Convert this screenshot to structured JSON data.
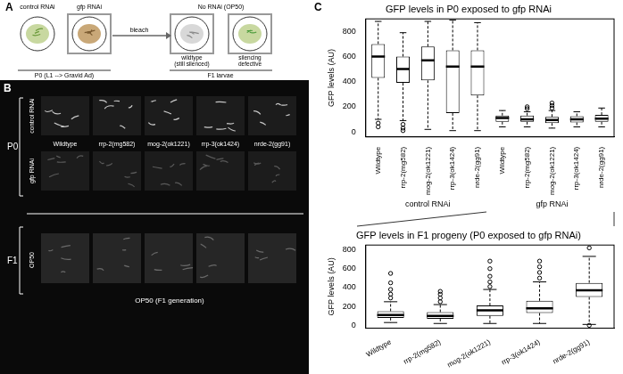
{
  "panel_a": {
    "label": "A",
    "plates": [
      "control RNAi",
      "gfp RNAi"
    ],
    "no_rnai": "No RNAi (OP50)",
    "p0": "P0 (L1 --> Gravid Ad)",
    "bleach": "bleach",
    "f1_states": [
      "wildtype (still silenced)",
      "silencing defective"
    ],
    "f1": "F1 larvae"
  },
  "panel_b": {
    "label": "B",
    "p0": "P0",
    "rows": [
      "control RNAi",
      "gfp RNAi"
    ],
    "strains": [
      "Wildtype",
      "rrp-2(mg582)",
      "mog-2(ok1221)",
      "rrp-3(ok1424)",
      "nrde-2(gg91)"
    ],
    "f1": "F1",
    "f1_row": "OP50",
    "f1_caption": "OP50 (F1 generation)"
  },
  "panel_c": {
    "label": "C"
  },
  "chart_data": [
    {
      "type": "box",
      "title": "GFP levels in P0 exposed to gfp RNAi",
      "y_label": "GFP levels (AU)",
      "categories": [
        "Wildtype",
        "rrp-2(mg582)",
        "mog-2(ok1221)",
        "rrp-3(ok1424)",
        "nrde-2(gg91)",
        "Wildtype",
        "rrp-2(mg582)",
        "mog-2(ok1221)",
        "rrp-3(ok1424)",
        "nrde-2(gg91)"
      ],
      "groups": [
        "control RNAi",
        "gfp RNAi"
      ],
      "values": [
        {
          "low": 100,
          "q1": 430,
          "median": 600,
          "q3": 700,
          "high": 880,
          "outliers": [
            70,
            40
          ]
        },
        {
          "low": 90,
          "q1": 390,
          "median": 500,
          "q3": 600,
          "high": 790,
          "outliers": [
            60,
            30,
            10
          ]
        },
        {
          "low": 20,
          "q1": 410,
          "median": 570,
          "q3": 680,
          "high": 880,
          "outliers": []
        },
        {
          "low": 10,
          "q1": 150,
          "median": 520,
          "q3": 650,
          "high": 890,
          "outliers": []
        },
        {
          "low": 10,
          "q1": 290,
          "median": 520,
          "q3": 650,
          "high": 870,
          "outliers": []
        },
        {
          "low": 40,
          "q1": 80,
          "median": 110,
          "q3": 130,
          "high": 170,
          "outliers": []
        },
        {
          "low": 40,
          "q1": 80,
          "median": 100,
          "q3": 130,
          "high": 160,
          "outliers": [
            185,
            200
          ]
        },
        {
          "low": 30,
          "q1": 70,
          "median": 95,
          "q3": 120,
          "high": 170,
          "outliers": [
            190,
            210,
            230
          ]
        },
        {
          "low": 40,
          "q1": 75,
          "median": 100,
          "q3": 125,
          "high": 160,
          "outliers": []
        },
        {
          "low": 40,
          "q1": 80,
          "median": 105,
          "q3": 135,
          "high": 190,
          "outliers": []
        }
      ],
      "color": "#000000",
      "ylim": [
        -40,
        900
      ],
      "yticks": [
        0,
        200,
        400,
        600,
        800
      ],
      "grid": false
    },
    {
      "type": "box",
      "title": "GFP levels in F1 progeny (P0 exposed to gfp RNAi)",
      "y_label": "GFP levels (AU)",
      "categories": [
        "Wildtype",
        "rrp-2(mg582)",
        "mog-2(ok1221)",
        "rrp-3(ok1424)",
        "nrde-2(gg91)"
      ],
      "values": [
        {
          "low": 30,
          "q1": 80,
          "median": 110,
          "q3": 150,
          "high": 250,
          "outliers": [
            290,
            330,
            380,
            450,
            550
          ]
        },
        {
          "low": 20,
          "q1": 70,
          "median": 100,
          "q3": 140,
          "high": 220,
          "outliers": [
            250,
            290,
            330,
            360
          ]
        },
        {
          "low": 20,
          "q1": 100,
          "median": 160,
          "q3": 210,
          "high": 380,
          "outliers": [
            410,
            460,
            520,
            600,
            680
          ]
        },
        {
          "low": 20,
          "q1": 130,
          "median": 180,
          "q3": 260,
          "high": 460,
          "outliers": [
            500,
            560,
            620,
            680
          ]
        },
        {
          "low": 10,
          "q1": 300,
          "median": 370,
          "q3": 450,
          "high": 730,
          "outliers": [
            0,
            820
          ]
        }
      ],
      "color": "#000000",
      "ylim": [
        -30,
        850
      ],
      "yticks": [
        0,
        200,
        400,
        600,
        800
      ],
      "grid": false
    }
  ]
}
